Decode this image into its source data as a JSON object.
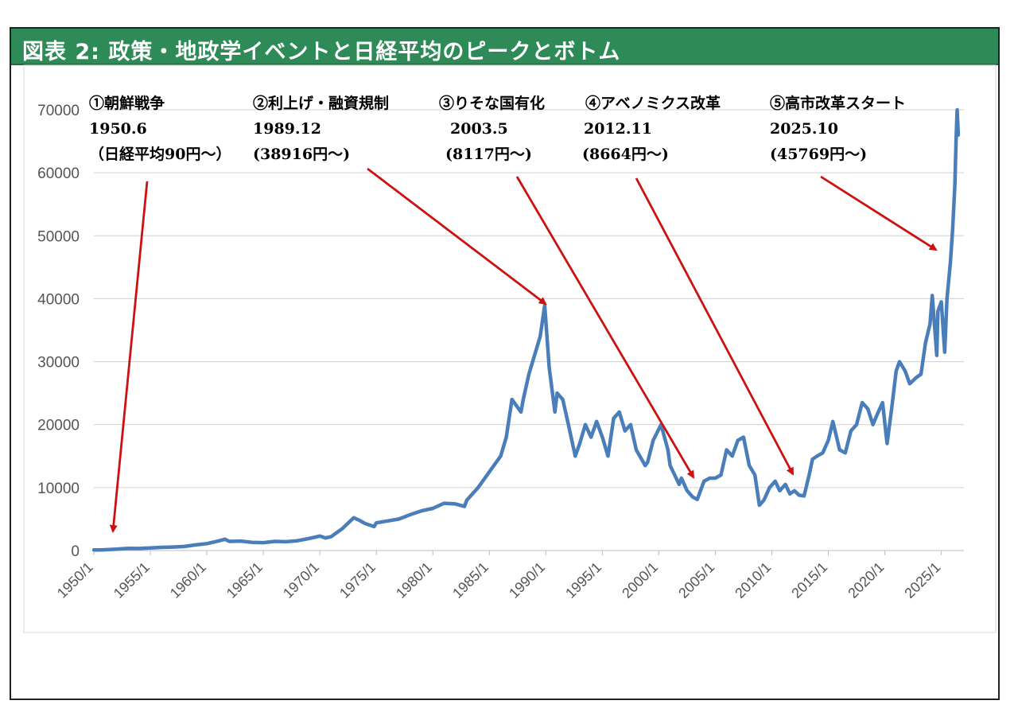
{
  "title": "図表 2: 政策・地政学イベントと日経平均のピークとボトム",
  "colors": {
    "header": "#2e8b57",
    "line": "#4a7ebb",
    "arrow": "#cc1111",
    "grid": "#d0d0d0"
  },
  "chart_data": {
    "type": "line",
    "title": "図表 2: 政策・地政学イベントと日経平均のピークとボトム",
    "xlabel": "",
    "ylabel": "",
    "ylim": [
      0,
      70000
    ],
    "yticks": [
      "0",
      "10000",
      "20000",
      "30000",
      "40000",
      "50000",
      "60000",
      "70000"
    ],
    "xticks": [
      "1950/1",
      "1955/1",
      "1960/1",
      "1965/1",
      "1970/1",
      "1975/1",
      "1980/1",
      "1985/1",
      "1990/1",
      "1995/1",
      "2000/1",
      "2005/1",
      "2010/1",
      "2015/1",
      "2020/1",
      "2025/1"
    ],
    "grid": true,
    "series": [
      {
        "values": [
          [
            1950.0,
            100
          ],
          [
            1950.5,
            90
          ],
          [
            1951.0,
            130
          ],
          [
            1952.0,
            220
          ],
          [
            1953.0,
            340
          ],
          [
            1954.0,
            330
          ],
          [
            1955.0,
            400
          ],
          [
            1956.0,
            500
          ],
          [
            1957.0,
            550
          ],
          [
            1958.0,
            650
          ],
          [
            1959.0,
            900
          ],
          [
            1960.0,
            1100
          ],
          [
            1961.0,
            1500
          ],
          [
            1961.6,
            1800
          ],
          [
            1962.0,
            1450
          ],
          [
            1963.0,
            1500
          ],
          [
            1964.0,
            1300
          ],
          [
            1965.0,
            1250
          ],
          [
            1966.0,
            1450
          ],
          [
            1967.0,
            1400
          ],
          [
            1968.0,
            1550
          ],
          [
            1969.0,
            1900
          ],
          [
            1970.0,
            2300
          ],
          [
            1970.5,
            2000
          ],
          [
            1971.0,
            2200
          ],
          [
            1972.0,
            3500
          ],
          [
            1973.0,
            5200
          ],
          [
            1973.5,
            4800
          ],
          [
            1974.0,
            4300
          ],
          [
            1974.8,
            3800
          ],
          [
            1975.0,
            4400
          ],
          [
            1976.0,
            4700
          ],
          [
            1977.0,
            5000
          ],
          [
            1978.0,
            5700
          ],
          [
            1979.0,
            6300
          ],
          [
            1980.0,
            6700
          ],
          [
            1981.0,
            7500
          ],
          [
            1982.0,
            7400
          ],
          [
            1982.8,
            7000
          ],
          [
            1983.0,
            8000
          ],
          [
            1984.0,
            10000
          ],
          [
            1985.0,
            12500
          ],
          [
            1986.0,
            15000
          ],
          [
            1986.5,
            18000
          ],
          [
            1987.0,
            24000
          ],
          [
            1987.8,
            22000
          ],
          [
            1988.0,
            24000
          ],
          [
            1988.5,
            28000
          ],
          [
            1989.0,
            31000
          ],
          [
            1989.5,
            34000
          ],
          [
            1989.9,
            38916
          ],
          [
            1990.3,
            29000
          ],
          [
            1990.8,
            22000
          ],
          [
            1991.0,
            25000
          ],
          [
            1991.5,
            24000
          ],
          [
            1992.0,
            20000
          ],
          [
            1992.6,
            15000
          ],
          [
            1993.0,
            17000
          ],
          [
            1993.5,
            20000
          ],
          [
            1994.0,
            18000
          ],
          [
            1994.5,
            20500
          ],
          [
            1995.0,
            18000
          ],
          [
            1995.5,
            15000
          ],
          [
            1996.0,
            21000
          ],
          [
            1996.5,
            22000
          ],
          [
            1997.0,
            19000
          ],
          [
            1997.5,
            20000
          ],
          [
            1998.0,
            16000
          ],
          [
            1998.8,
            13500
          ],
          [
            1999.0,
            14000
          ],
          [
            1999.5,
            17500
          ],
          [
            2000.2,
            20000
          ],
          [
            2000.8,
            16000
          ],
          [
            2001.0,
            13500
          ],
          [
            2001.8,
            10500
          ],
          [
            2002.0,
            11500
          ],
          [
            2002.5,
            9500
          ],
          [
            2003.0,
            8500
          ],
          [
            2003.4,
            8117
          ],
          [
            2004.0,
            11000
          ],
          [
            2004.5,
            11500
          ],
          [
            2005.0,
            11500
          ],
          [
            2005.5,
            12000
          ],
          [
            2006.0,
            16000
          ],
          [
            2006.5,
            15000
          ],
          [
            2007.0,
            17500
          ],
          [
            2007.5,
            18000
          ],
          [
            2008.0,
            13500
          ],
          [
            2008.5,
            12000
          ],
          [
            2008.9,
            7200
          ],
          [
            2009.3,
            8000
          ],
          [
            2009.8,
            10000
          ],
          [
            2010.3,
            11000
          ],
          [
            2010.7,
            9500
          ],
          [
            2011.2,
            10500
          ],
          [
            2011.6,
            9000
          ],
          [
            2012.0,
            9500
          ],
          [
            2012.4,
            8800
          ],
          [
            2012.85,
            8664
          ],
          [
            2013.3,
            12000
          ],
          [
            2013.6,
            14500
          ],
          [
            2014.0,
            15000
          ],
          [
            2014.5,
            15500
          ],
          [
            2015.0,
            17500
          ],
          [
            2015.4,
            20500
          ],
          [
            2016.0,
            16000
          ],
          [
            2016.5,
            15500
          ],
          [
            2017.0,
            19000
          ],
          [
            2017.5,
            20000
          ],
          [
            2018.0,
            23500
          ],
          [
            2018.5,
            22500
          ],
          [
            2018.95,
            20000
          ],
          [
            2019.3,
            21500
          ],
          [
            2019.8,
            23500
          ],
          [
            2020.2,
            17000
          ],
          [
            2020.6,
            22500
          ],
          [
            2021.0,
            28500
          ],
          [
            2021.3,
            30000
          ],
          [
            2021.8,
            28500
          ],
          [
            2022.2,
            26500
          ],
          [
            2022.8,
            27500
          ],
          [
            2023.2,
            28000
          ],
          [
            2023.6,
            33000
          ],
          [
            2024.0,
            36000
          ],
          [
            2024.2,
            40500
          ],
          [
            2024.6,
            31000
          ],
          [
            2024.7,
            38000
          ],
          [
            2025.0,
            39500
          ],
          [
            2025.3,
            31500
          ],
          [
            2025.5,
            40000
          ],
          [
            2025.8,
            45769
          ],
          [
            2026.0,
            51000
          ],
          [
            2026.2,
            58000
          ],
          [
            2026.3,
            65000
          ],
          [
            2026.4,
            70000
          ],
          [
            2026.5,
            66000
          ]
        ]
      }
    ],
    "annotations": [
      {
        "lines": [
          "①朝鮮戦争",
          "1950.6",
          "（日経平均90円～）"
        ]
      },
      {
        "lines": [
          "②利上げ・融資規制",
          "1989.12",
          "(38916円～)"
        ]
      },
      {
        "lines": [
          "③りそな国有化",
          "2003.5",
          "(8117円～)"
        ]
      },
      {
        "lines": [
          "④アベノミクス改革",
          "2012.11",
          "(8664円～)"
        ]
      },
      {
        "lines": [
          "⑤高市改革スタート",
          "2025.10",
          "(45769円～)"
        ]
      }
    ]
  }
}
